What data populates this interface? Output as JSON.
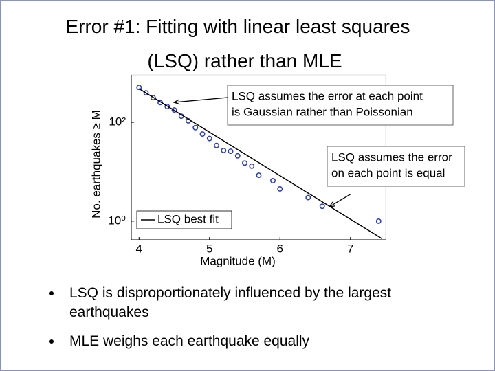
{
  "slide": {
    "title": [
      "Error #1: Fitting with linear least squares",
      "(LSQ) rather than MLE"
    ],
    "bullets": [
      "LSQ is disproportionately influenced by the largest earthquakes",
      "MLE weighs each earthquake equally"
    ]
  },
  "chart_data": {
    "type": "scatter",
    "x_label": "Magnitude (M)",
    "y_label": "No. earthquakes ≥ M",
    "yscale": "log",
    "xlim": [
      3.89,
      7.5
    ],
    "ylim": [
      0.42,
      912
    ],
    "xticks": [
      4,
      5,
      6,
      7
    ],
    "yticks": [
      {
        "value": 1,
        "label": "10⁰"
      },
      {
        "value": 100,
        "label": "10²"
      }
    ],
    "legend": "lower left",
    "series": [
      {
        "name": null,
        "color": "#2b3fa0",
        "marker": "open-circle",
        "x": [
          4.0,
          4.1,
          4.2,
          4.3,
          4.4,
          4.5,
          4.6,
          4.7,
          4.8,
          4.9,
          5.0,
          5.1,
          5.2,
          5.3,
          5.4,
          5.5,
          5.6,
          5.7,
          5.9,
          6.0,
          6.4,
          6.6,
          7.4
        ],
        "values": [
          510,
          395,
          316,
          251,
          209,
          178,
          133,
          107,
          78,
          58,
          47,
          34,
          27,
          26,
          21,
          15,
          13,
          8.5,
          6.6,
          4.5,
          3,
          2,
          1
        ]
      },
      {
        "name": "LSQ best fit",
        "color": "#000000",
        "marker": "line",
        "x": [
          4.0,
          7.45
        ],
        "values": [
          480,
          0.44
        ]
      }
    ],
    "annotations": [
      {
        "lines": [
          "LSQ assumes the error at each point",
          "is Gaussian rather than Poissonian"
        ]
      },
      {
        "lines": [
          "LSQ assumes the error",
          "on each point is equal"
        ]
      }
    ]
  }
}
